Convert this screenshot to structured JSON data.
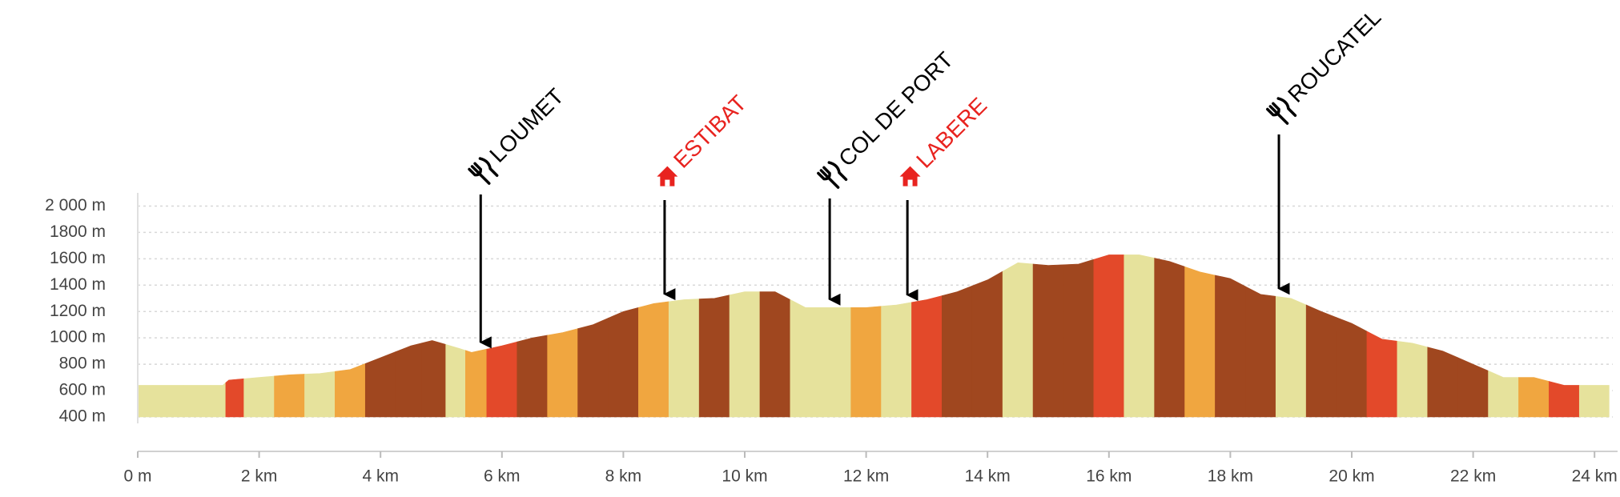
{
  "chart_data": {
    "type": "elevation-profile",
    "x": [
      0,
      0.5,
      1.0,
      1.4,
      1.5,
      2.0,
      2.5,
      3.0,
      3.5,
      4.0,
      4.5,
      4.85,
      5.3,
      5.5,
      6.0,
      6.5,
      7.0,
      7.5,
      8.0,
      8.5,
      9.0,
      9.5,
      10.0,
      10.5,
      11.0,
      11.5,
      12.0,
      12.5,
      13.0,
      13.5,
      14.0,
      14.5,
      15.0,
      15.5,
      16.0,
      16.5,
      17.0,
      17.5,
      18.0,
      18.5,
      19.0,
      19.5,
      20.0,
      20.5,
      21.0,
      21.5,
      22.0,
      22.5,
      23.0,
      23.5,
      24.0,
      24.24
    ],
    "values": [
      640,
      640,
      640,
      640,
      680,
      700,
      720,
      730,
      760,
      850,
      940,
      980,
      920,
      890,
      940,
      1000,
      1040,
      1100,
      1200,
      1260,
      1290,
      1300,
      1350,
      1350,
      1230,
      1230,
      1230,
      1250,
      1290,
      1350,
      1440,
      1570,
      1550,
      1560,
      1630,
      1630,
      1580,
      1500,
      1450,
      1330,
      1300,
      1200,
      1110,
      990,
      960,
      900,
      800,
      700,
      700,
      640,
      640,
      640
    ],
    "colors": [
      "#e6e29c",
      "#e6e29c",
      "#e6e29c",
      "#e6e29c",
      "#e3492a",
      "#e6e29c",
      "#f0a640",
      "#e6e29c",
      "#f0a640",
      "#a0471f",
      "#a0471f",
      "#a0471f",
      "#e6e29c",
      "#f0a640",
      "#e3492a",
      "#a0471f",
      "#f0a640",
      "#a0471f",
      "#a0471f",
      "#f0a640",
      "#e6e29c",
      "#a0471f",
      "#e6e29c",
      "#a0471f",
      "#e6e29c",
      "#e6e29c",
      "#f0a640",
      "#e6e29c",
      "#e3492a",
      "#a0471f",
      "#a0471f",
      "#e6e29c",
      "#a0471f",
      "#a0471f",
      "#e3492a",
      "#e6e29c",
      "#a0471f",
      "#f0a640",
      "#a0471f",
      "#a0471f",
      "#e6e29c",
      "#a0471f",
      "#a0471f",
      "#e3492a",
      "#e6e29c",
      "#a0471f",
      "#a0471f",
      "#e6e29c",
      "#f0a640",
      "#e3492a",
      "#e6e29c",
      "#e6e29c"
    ],
    "xlim": [
      0,
      24.3
    ],
    "ylim": [
      400,
      2100
    ],
    "xticks": [
      {
        "value": 0,
        "label": "0 m"
      },
      {
        "value": 2,
        "label": "2 km"
      },
      {
        "value": 4,
        "label": "4 km"
      },
      {
        "value": 6,
        "label": "6 km"
      },
      {
        "value": 8,
        "label": "8 km"
      },
      {
        "value": 10,
        "label": "10 km"
      },
      {
        "value": 12,
        "label": "12 km"
      },
      {
        "value": 14,
        "label": "14 km"
      },
      {
        "value": 16,
        "label": "16 km"
      },
      {
        "value": 18,
        "label": "18 km"
      },
      {
        "value": 20,
        "label": "20 km"
      },
      {
        "value": 22,
        "label": "22 km"
      },
      {
        "value": 24,
        "label": "24 km"
      }
    ],
    "yticks": [
      {
        "value": 400,
        "label": "400 m"
      },
      {
        "value": 600,
        "label": "600 m"
      },
      {
        "value": 800,
        "label": "800 m"
      },
      {
        "value": 1000,
        "label": "1000 m"
      },
      {
        "value": 1200,
        "label": "1200 m"
      },
      {
        "value": 1400,
        "label": "1400 m"
      },
      {
        "value": 1600,
        "label": "1600 m"
      },
      {
        "value": 1800,
        "label": "1800 m"
      },
      {
        "value": 2000,
        "label": "2 000 m"
      }
    ],
    "grid": true,
    "annotations": [
      {
        "label": "LOUMET",
        "x": 5.65,
        "color": "#000000",
        "icon": "restaurant"
      },
      {
        "label": "ESTIBAT",
        "x": 8.68,
        "color": "#e8231f",
        "icon": "lodging"
      },
      {
        "label": "COL DE PORT",
        "x": 11.4,
        "color": "#000000",
        "icon": "restaurant"
      },
      {
        "label": "LABERE",
        "x": 12.68,
        "color": "#e8231f",
        "icon": "lodging"
      },
      {
        "label": "ROUCATEL",
        "x": 18.8,
        "color": "#000000",
        "icon": "restaurant"
      }
    ]
  }
}
